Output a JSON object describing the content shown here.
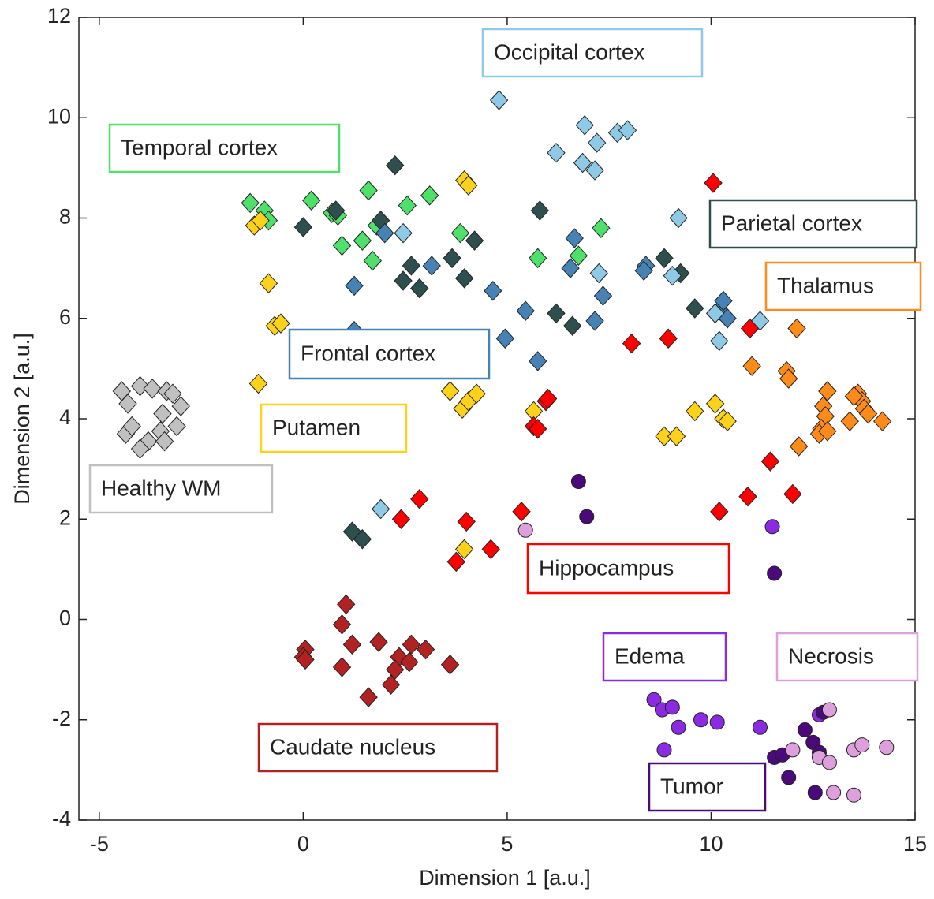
{
  "chart_data": {
    "type": "scatter",
    "x_label": "Dimension 1 [a.u.]",
    "y_label": "Dimension 2 [a.u.]",
    "xlim": [
      -5.5,
      15
    ],
    "ylim": [
      -4,
      12
    ],
    "xticks": [
      -5,
      0,
      5,
      10,
      15
    ],
    "yticks": [
      -4,
      -2,
      0,
      2,
      4,
      6,
      8,
      10,
      12
    ],
    "series": [
      {
        "name": "Healthy WM",
        "color": "#c0c0c0",
        "marker": "diamond",
        "x": [
          -4.45,
          -4.3,
          -4.0,
          -3.7,
          -3.35,
          -3.2,
          -3.0,
          -3.45,
          -4.35,
          -4.2,
          -3.8,
          -3.5,
          -3.4,
          -4.0,
          -3.1
        ],
        "values": [
          4.55,
          4.3,
          4.65,
          4.6,
          4.55,
          4.5,
          4.25,
          4.1,
          3.7,
          3.85,
          3.55,
          3.75,
          3.55,
          3.4,
          3.85
        ]
      },
      {
        "name": "Temporal cortex",
        "color": "#4ee06a",
        "marker": "diamond",
        "x": [
          -1.3,
          -0.95,
          -0.85,
          0.2,
          0.7,
          0.85,
          0.95,
          1.6,
          1.8,
          1.45,
          1.7,
          2.55,
          3.1,
          3.85,
          5.75,
          6.75,
          7.3
        ],
        "values": [
          8.3,
          8.15,
          7.95,
          8.35,
          8.1,
          8.05,
          7.45,
          8.55,
          7.85,
          7.55,
          7.15,
          8.25,
          8.45,
          7.7,
          7.2,
          7.25,
          7.8
        ]
      },
      {
        "name": "Parietal cortex",
        "color": "#2f4f4f",
        "marker": "diamond",
        "x": [
          0,
          0.8,
          1.9,
          2.25,
          2.45,
          2.65,
          2.85,
          3.65,
          3.95,
          4.2,
          5.8,
          6.2,
          6.6,
          8.85,
          9.25,
          9.6,
          1.2,
          1.45
        ],
        "values": [
          7.82,
          8.15,
          7.95,
          9.05,
          6.75,
          7.05,
          6.6,
          7.2,
          6.8,
          7.55,
          8.15,
          6.1,
          5.85,
          7.2,
          6.9,
          6.2,
          1.75,
          1.6
        ]
      },
      {
        "name": "Frontal cortex",
        "color": "#4682b4",
        "marker": "diamond",
        "x": [
          1.25,
          1.25,
          2.0,
          3.15,
          4.65,
          4.95,
          5.45,
          5.75,
          6.55,
          6.65,
          7.15,
          7.35,
          8.4,
          8.35,
          10.2,
          10.3,
          10.4
        ],
        "values": [
          6.65,
          5.75,
          7.7,
          7.05,
          6.55,
          5.6,
          6.15,
          5.15,
          7.0,
          7.6,
          5.95,
          6.45,
          7.05,
          6.95,
          6.15,
          6.35,
          6.0
        ]
      },
      {
        "name": "Occipital cortex",
        "color": "#8ecae6",
        "marker": "diamond",
        "x": [
          4.8,
          6.2,
          6.9,
          6.85,
          7.2,
          7.15,
          7.7,
          7.95,
          9.2,
          9.05,
          7.25,
          10.1,
          10.2,
          11.2,
          2.45,
          1.9
        ],
        "values": [
          10.35,
          9.3,
          9.85,
          9.1,
          9.5,
          8.95,
          9.7,
          9.75,
          8.0,
          6.85,
          6.9,
          6.1,
          5.55,
          5.95,
          7.7,
          2.2
        ]
      },
      {
        "name": "Thalamus",
        "color": "#ff8c1a",
        "marker": "diamond",
        "x": [
          11.0,
          12.1,
          11.85,
          11.9,
          12.85,
          12.75,
          12.8,
          12.7,
          12.65,
          12.85,
          12.15,
          13.4,
          13.6,
          13.7,
          13.75,
          13.85,
          14.2,
          13.5
        ],
        "values": [
          5.05,
          5.8,
          4.95,
          4.8,
          4.55,
          4.25,
          4.05,
          3.8,
          3.7,
          3.75,
          3.45,
          3.95,
          4.5,
          4.35,
          4.2,
          4.1,
          3.95,
          4.45
        ]
      },
      {
        "name": "Putamen",
        "color": "#ffd21a",
        "marker": "diamond",
        "x": [
          -1.2,
          -1.05,
          -0.85,
          -0.7,
          -0.55,
          -1.1,
          3.6,
          3.9,
          4.05,
          4.25,
          3.95,
          4.05,
          5.65,
          8.85,
          9.15,
          9.6,
          10.1,
          10.3,
          10.4,
          3.95
        ],
        "values": [
          7.85,
          7.95,
          6.7,
          5.85,
          5.9,
          4.7,
          4.55,
          4.2,
          4.35,
          4.5,
          8.75,
          8.65,
          4.15,
          3.65,
          3.65,
          4.15,
          4.3,
          4.0,
          3.95,
          1.4
        ]
      },
      {
        "name": "Hippocampus",
        "color": "#ff0000",
        "marker": "diamond",
        "x": [
          10.05,
          8.05,
          8.95,
          10.95,
          5.95,
          5.65,
          5.75,
          6.0,
          11.45,
          2.4,
          2.85,
          4.0,
          4.6,
          3.75,
          5.35,
          10.2,
          10.9,
          12.0
        ],
        "values": [
          8.7,
          5.5,
          5.6,
          5.8,
          4.35,
          3.85,
          3.8,
          4.4,
          3.15,
          2.0,
          2.4,
          1.95,
          1.4,
          1.15,
          2.15,
          2.15,
          2.45,
          2.5
        ]
      },
      {
        "name": "Caudate nucleus",
        "color": "#b22222",
        "marker": "diamond",
        "x": [
          1.05,
          0.95,
          1.2,
          0.05,
          0,
          0.05,
          0.95,
          1.85,
          2.35,
          2.65,
          2.6,
          2.25,
          2.15,
          3.0,
          3.6,
          1.6
        ],
        "values": [
          0.3,
          -0.1,
          -0.5,
          -0.6,
          -0.75,
          -0.8,
          -0.95,
          -0.45,
          -0.75,
          -0.5,
          -0.85,
          -1.0,
          -1.3,
          -0.6,
          -0.9,
          -1.55
        ]
      },
      {
        "name": "Edema",
        "color": "#8a2be2",
        "marker": "circle",
        "x": [
          8.6,
          8.8,
          9.05,
          9.2,
          9.75,
          10.15,
          8.85,
          11.2,
          12.65,
          11.5
        ],
        "values": [
          -1.6,
          -1.8,
          -1.75,
          -2.15,
          -2.0,
          -2.05,
          -2.6,
          -2.15,
          -1.9,
          1.85
        ]
      },
      {
        "name": "Tumor",
        "color": "#4b0a7a",
        "marker": "circle",
        "x": [
          6.75,
          6.95,
          11.55,
          12.3,
          12.5,
          11.55,
          11.75,
          11.9,
          12.75,
          12.65,
          12.55
        ],
        "values": [
          2.75,
          2.05,
          0.92,
          -2.2,
          -2.45,
          -2.75,
          -2.7,
          -3.15,
          -1.85,
          -2.65,
          -3.45
        ]
      },
      {
        "name": "Necrosis",
        "color": "#dda0dd",
        "marker": "circle",
        "x": [
          5.45,
          12.9,
          12.0,
          12.65,
          12.9,
          13.5,
          13.7,
          14.3,
          13.0,
          13.5
        ],
        "values": [
          1.78,
          -1.8,
          -2.6,
          -2.75,
          -2.85,
          -2.6,
          -2.5,
          -2.55,
          -3.45,
          -3.5
        ]
      }
    ]
  }
}
